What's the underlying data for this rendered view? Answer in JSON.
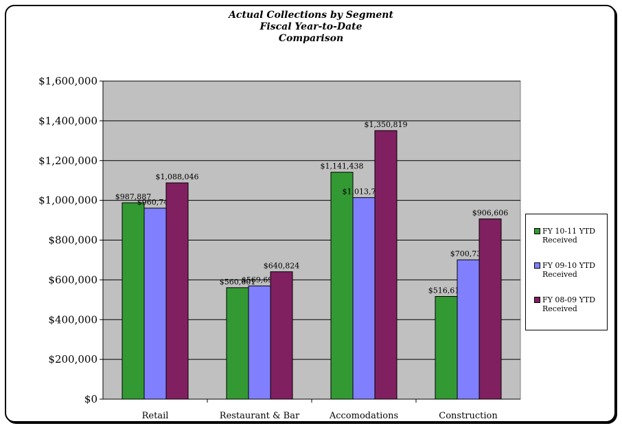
{
  "chart_data": {
    "type": "bar",
    "title": [
      "Actual Collections by Segment",
      "Fiscal Year-to-Date",
      "Comparison"
    ],
    "categories": [
      "Retail",
      "Restaurant & Bar",
      "Accomodations",
      "Construction"
    ],
    "series": [
      {
        "name": "FY 10-11 YTD Received",
        "color": "#339933",
        "values": [
          987887,
          560601,
          1141438,
          516614
        ],
        "labels": [
          "$987,887",
          "$560,601",
          "$1,141,438",
          "$516,614"
        ]
      },
      {
        "name": "FY 09-10 YTD Received",
        "color": "#8080ff",
        "values": [
          960746,
          569698,
          1013780,
          700734
        ],
        "labels": [
          "$960,746",
          "$569,698",
          "$1,013,780",
          "$700,734"
        ]
      },
      {
        "name": "FY 08-09 YTD Received",
        "color": "#802060",
        "values": [
          1088046,
          640824,
          1350819,
          906606
        ],
        "labels": [
          "$1,088,046",
          "$640,824",
          "$1,350,819",
          "$906,606"
        ]
      }
    ],
    "ylim": [
      0,
      1600000
    ],
    "yticks": [
      0,
      200000,
      400000,
      600000,
      800000,
      1000000,
      1200000,
      1400000,
      1600000
    ],
    "ytick_labels": [
      "$0",
      "$200,000",
      "$400,000",
      "$600,000",
      "$800,000",
      "$1,000,000",
      "$1,200,000",
      "$1,400,000",
      "$1,600,000"
    ],
    "grid": true,
    "legend_position": "right",
    "plot_background": "#c0c0c0"
  }
}
